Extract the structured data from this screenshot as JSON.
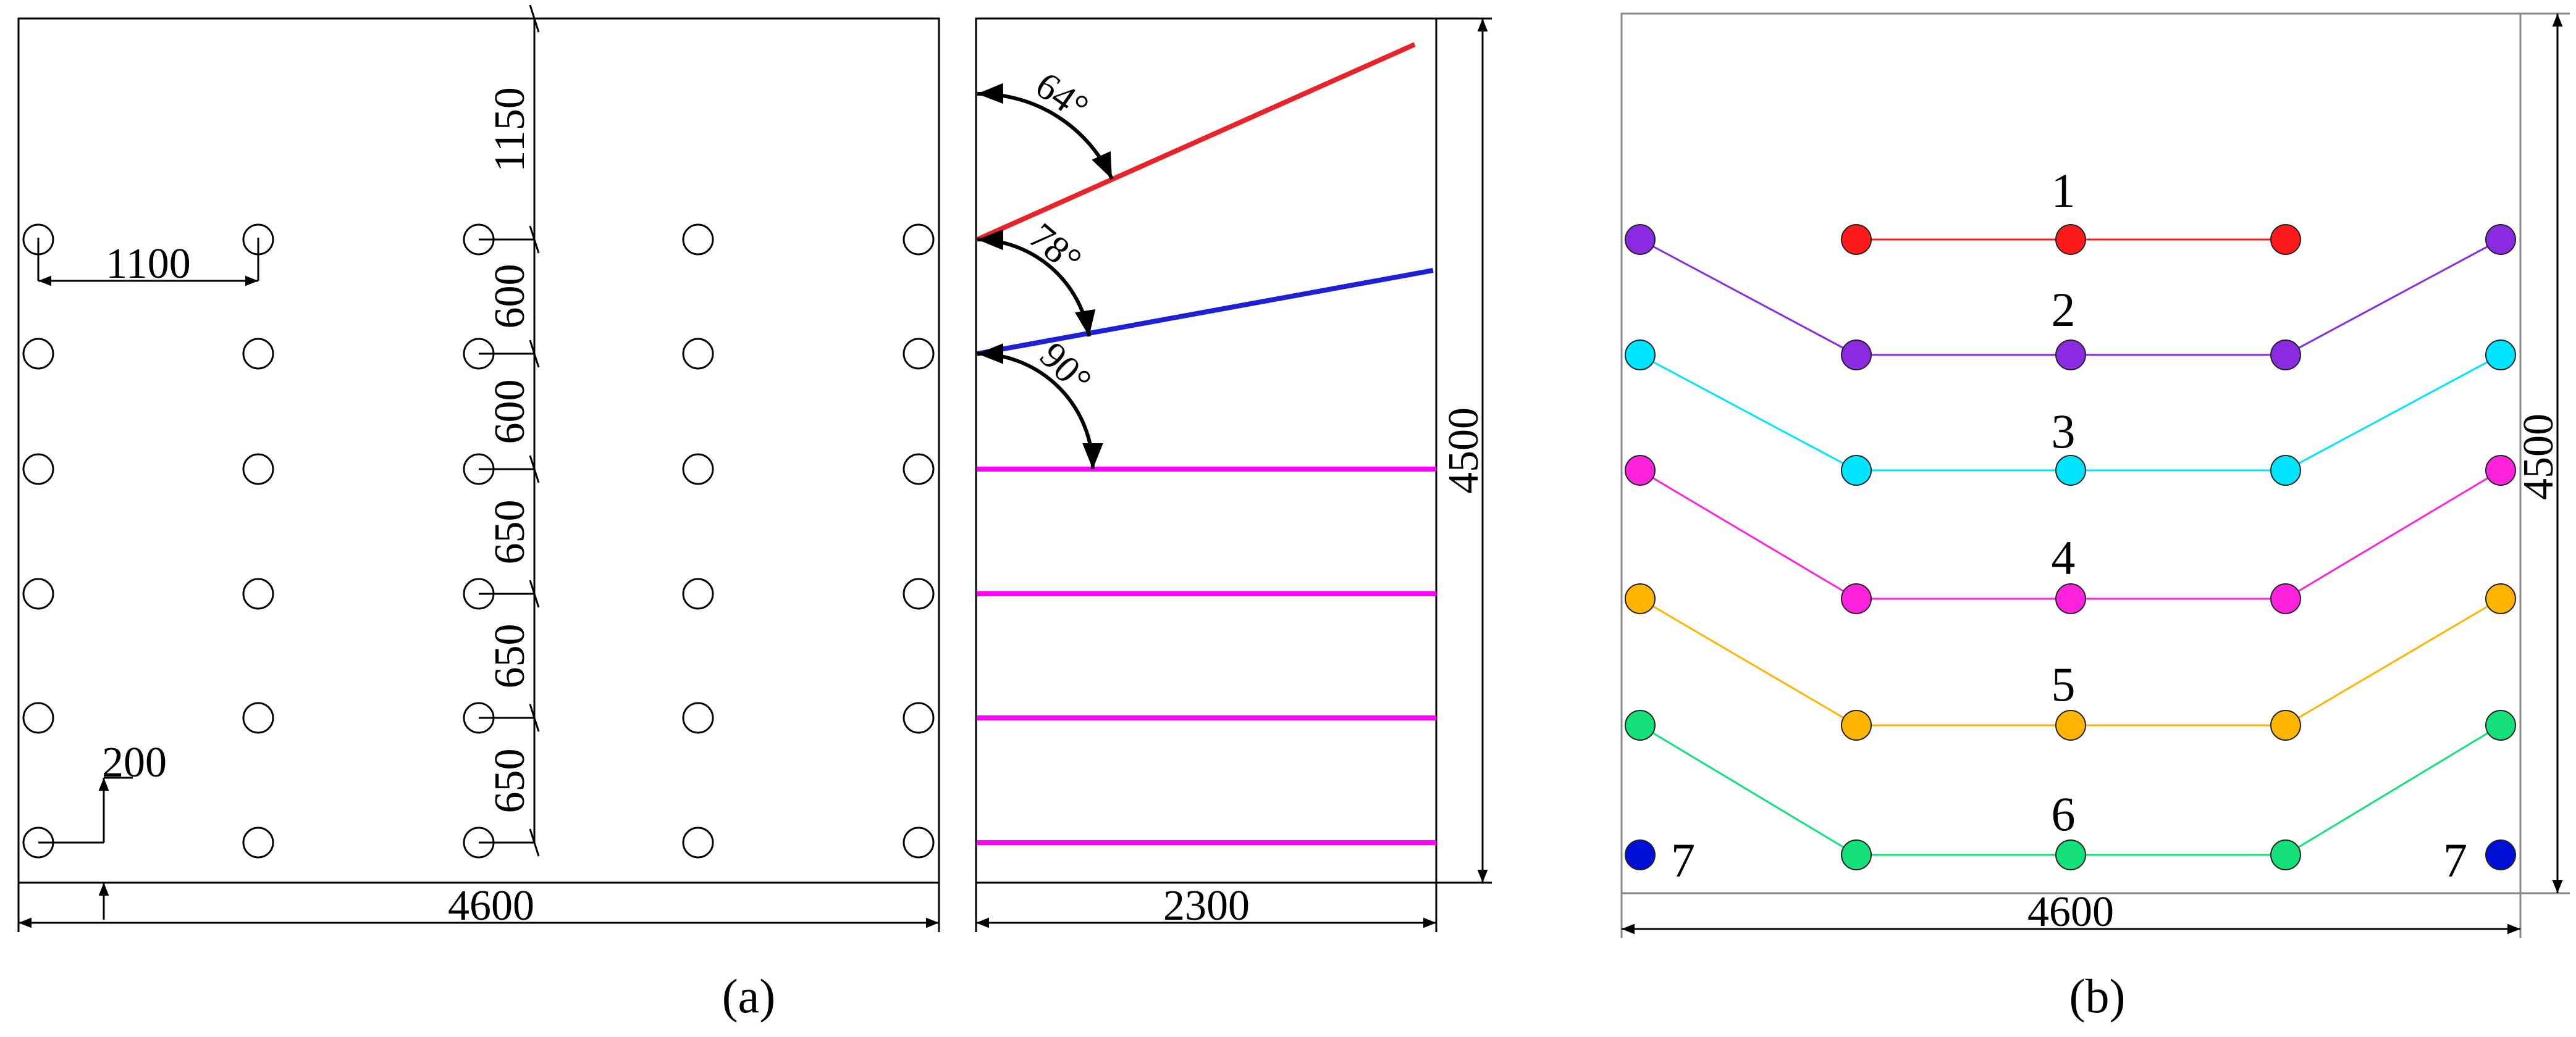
{
  "panel_a": {
    "caption": "(a)",
    "dims": {
      "width": "4600",
      "spacing_h": "1100",
      "edge": "200",
      "spacing_v": [
        "1150",
        "600",
        "600",
        "650",
        "650",
        "650"
      ],
      "side_width": "2300",
      "height": "4500"
    },
    "angles": [
      "64°",
      "78°",
      "90°"
    ],
    "hole_grid": {
      "columns": 5,
      "rows": 6
    },
    "line_colors": [
      "#e8232a",
      "#1f1fd6",
      "#ff00ff",
      "#ff00ff",
      "#ff00ff",
      "#ff00ff"
    ]
  },
  "panel_b": {
    "caption": "(b)",
    "width_dim": "4600",
    "height_dim": "4500",
    "rows": [
      {
        "label": "1",
        "color": "#ff1a1a",
        "edge_color": "#8a2be2"
      },
      {
        "label": "2",
        "color": "#8a2be2",
        "edge_color": "#00e5ff"
      },
      {
        "label": "3",
        "color": "#00e5ff",
        "edge_color": "#ff22dd"
      },
      {
        "label": "4",
        "color": "#ff22dd",
        "edge_color": "#ffb400"
      },
      {
        "label": "5",
        "color": "#ffb400",
        "edge_color": "#14e07a"
      },
      {
        "label": "6",
        "color": "#14e07a",
        "edge_color": "#0010d8"
      }
    ],
    "corner_label_left": "7",
    "corner_label_right": "7"
  }
}
